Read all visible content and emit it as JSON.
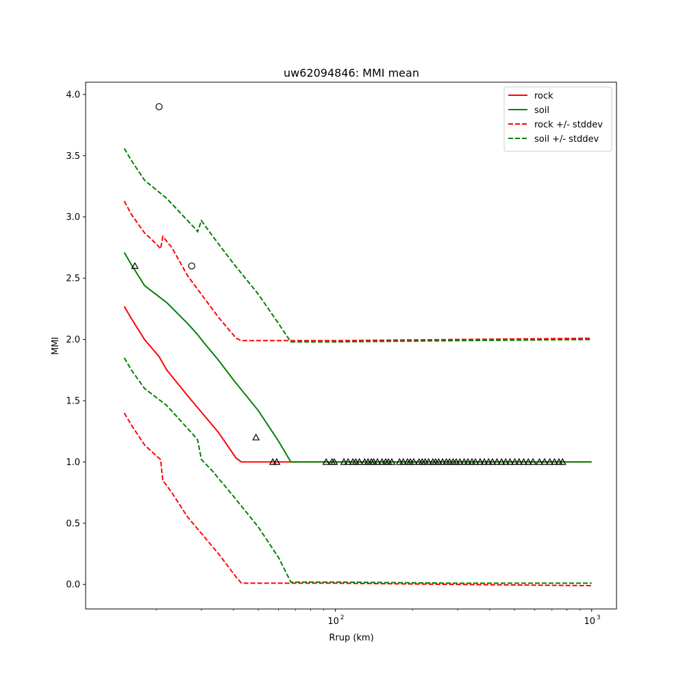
{
  "chart_data": {
    "type": "line",
    "title": "uw62094846: MMI mean",
    "xlabel": "Rrup (km)",
    "ylabel": "MMI",
    "xscale": "log",
    "xlim": [
      10.6,
      1250
    ],
    "ylim": [
      -0.2,
      4.1
    ],
    "grid": false,
    "legend_placement": "top-right",
    "x_ticks": [
      {
        "value": 100,
        "base": "10",
        "exp": "2"
      },
      {
        "value": 1000,
        "base": "10",
        "exp": "3"
      }
    ],
    "y_ticks": [
      {
        "value": 0.0,
        "label": "0.0"
      },
      {
        "value": 0.5,
        "label": "0.5"
      },
      {
        "value": 1.0,
        "label": "1.0"
      },
      {
        "value": 1.5,
        "label": "1.5"
      },
      {
        "value": 2.0,
        "label": "2.0"
      },
      {
        "value": 2.5,
        "label": "2.5"
      },
      {
        "value": 3.0,
        "label": "3.0"
      },
      {
        "value": 3.5,
        "label": "3.5"
      },
      {
        "value": 4.0,
        "label": "4.0"
      }
    ],
    "series": [
      {
        "name": "rock",
        "color": "#ff0000",
        "dash": "solid",
        "legend": true,
        "points": [
          [
            15,
            2.27
          ],
          [
            16,
            2.17
          ],
          [
            18,
            2.0
          ],
          [
            20.5,
            1.86
          ],
          [
            22,
            1.75
          ],
          [
            26.5,
            1.54
          ],
          [
            35,
            1.24
          ],
          [
            41,
            1.03
          ],
          [
            43,
            1.0
          ],
          [
            65,
            1.0
          ],
          [
            100,
            1.0
          ],
          [
            200,
            1.0
          ],
          [
            500,
            1.0
          ],
          [
            1000,
            1.0
          ]
        ]
      },
      {
        "name": "soil",
        "color": "#008000",
        "dash": "solid",
        "legend": true,
        "points": [
          [
            15,
            2.71
          ],
          [
            16,
            2.61
          ],
          [
            18,
            2.44
          ],
          [
            22,
            2.3
          ],
          [
            26.5,
            2.13
          ],
          [
            29,
            2.04
          ],
          [
            30.5,
            1.98
          ],
          [
            35,
            1.83
          ],
          [
            40,
            1.67
          ],
          [
            50,
            1.42
          ],
          [
            60,
            1.17
          ],
          [
            67,
            1.0
          ],
          [
            100,
            1.0
          ],
          [
            200,
            1.0
          ],
          [
            500,
            1.0
          ],
          [
            1000,
            1.0
          ]
        ]
      },
      {
        "name": "rock +/- stddev",
        "color": "#ff0000",
        "dash": "dashed",
        "legend": true,
        "points": [
          [
            15,
            3.13
          ],
          [
            16,
            3.02
          ],
          [
            18,
            2.87
          ],
          [
            20,
            2.78
          ],
          [
            20.8,
            2.74
          ],
          [
            21.2,
            2.84
          ],
          [
            23,
            2.75
          ],
          [
            26.5,
            2.52
          ],
          [
            35,
            2.18
          ],
          [
            41,
            2.01
          ],
          [
            43,
            1.99
          ],
          [
            100,
            1.99
          ],
          [
            300,
            2.0
          ],
          [
            1000,
            2.01
          ]
        ]
      },
      {
        "name": "soil +/- stddev",
        "color": "#008000",
        "dash": "dashed",
        "legend": true,
        "points": [
          [
            15,
            3.56
          ],
          [
            16,
            3.46
          ],
          [
            18,
            3.3
          ],
          [
            22,
            3.15
          ],
          [
            28.5,
            2.9
          ],
          [
            29,
            2.88
          ],
          [
            30,
            2.97
          ],
          [
            33,
            2.85
          ],
          [
            40,
            2.62
          ],
          [
            50,
            2.37
          ],
          [
            60,
            2.13
          ],
          [
            67,
            1.98
          ],
          [
            100,
            1.98
          ],
          [
            300,
            1.99
          ],
          [
            1000,
            2.0
          ]
        ]
      },
      {
        "name": "rock lower stddev",
        "color": "#ff0000",
        "dash": "dashed",
        "legend": false,
        "points": [
          [
            15,
            1.4
          ],
          [
            16,
            1.3
          ],
          [
            18,
            1.14
          ],
          [
            20,
            1.05
          ],
          [
            20.8,
            1.02
          ],
          [
            21.2,
            0.85
          ],
          [
            23,
            0.75
          ],
          [
            26.5,
            0.55
          ],
          [
            35,
            0.25
          ],
          [
            41,
            0.06
          ],
          [
            43,
            0.01
          ],
          [
            100,
            0.01
          ],
          [
            300,
            0.0
          ],
          [
            1000,
            -0.01
          ]
        ]
      },
      {
        "name": "soil lower stddev",
        "color": "#008000",
        "dash": "dashed",
        "legend": false,
        "points": [
          [
            15,
            1.85
          ],
          [
            16,
            1.75
          ],
          [
            18,
            1.6
          ],
          [
            22,
            1.46
          ],
          [
            28.5,
            1.2
          ],
          [
            29,
            1.18
          ],
          [
            30,
            1.02
          ],
          [
            33,
            0.93
          ],
          [
            40,
            0.72
          ],
          [
            50,
            0.47
          ],
          [
            60,
            0.22
          ],
          [
            67,
            0.02
          ],
          [
            100,
            0.02
          ],
          [
            300,
            0.01
          ],
          [
            1000,
            0.01
          ]
        ]
      }
    ],
    "observations": {
      "circles": [
        [
          20.5,
          3.9
        ],
        [
          27.5,
          2.6
        ]
      ],
      "triangles": [
        [
          16.5,
          2.6
        ],
        [
          49,
          1.2
        ],
        [
          57,
          1.0
        ],
        [
          59,
          1.0
        ],
        [
          92,
          1.0
        ],
        [
          97,
          1.0
        ],
        [
          99,
          1.0
        ],
        [
          108,
          1.0
        ],
        [
          112,
          1.0
        ],
        [
          117,
          1.0
        ],
        [
          120,
          1.0
        ],
        [
          124,
          1.0
        ],
        [
          130,
          1.0
        ],
        [
          134,
          1.0
        ],
        [
          138,
          1.0
        ],
        [
          141,
          1.0
        ],
        [
          146,
          1.0
        ],
        [
          152,
          1.0
        ],
        [
          157,
          1.0
        ],
        [
          161,
          1.0
        ],
        [
          166,
          1.0
        ],
        [
          178,
          1.0
        ],
        [
          184,
          1.0
        ],
        [
          191,
          1.0
        ],
        [
          196,
          1.0
        ],
        [
          202,
          1.0
        ],
        [
          212,
          1.0
        ],
        [
          218,
          1.0
        ],
        [
          224,
          1.0
        ],
        [
          231,
          1.0
        ],
        [
          240,
          1.0
        ],
        [
          246,
          1.0
        ],
        [
          253,
          1.0
        ],
        [
          262,
          1.0
        ],
        [
          271,
          1.0
        ],
        [
          279,
          1.0
        ],
        [
          288,
          1.0
        ],
        [
          296,
          1.0
        ],
        [
          306,
          1.0
        ],
        [
          318,
          1.0
        ],
        [
          329,
          1.0
        ],
        [
          341,
          1.0
        ],
        [
          352,
          1.0
        ],
        [
          367,
          1.0
        ],
        [
          381,
          1.0
        ],
        [
          396,
          1.0
        ],
        [
          410,
          1.0
        ],
        [
          427,
          1.0
        ],
        [
          445,
          1.0
        ],
        [
          462,
          1.0
        ],
        [
          480,
          1.0
        ],
        [
          501,
          1.0
        ],
        [
          521,
          1.0
        ],
        [
          543,
          1.0
        ],
        [
          566,
          1.0
        ],
        [
          590,
          1.0
        ],
        [
          625,
          1.0
        ],
        [
          655,
          1.0
        ],
        [
          687,
          1.0
        ],
        [
          716,
          1.0
        ],
        [
          745,
          1.0
        ],
        [
          770,
          1.0
        ]
      ]
    }
  }
}
